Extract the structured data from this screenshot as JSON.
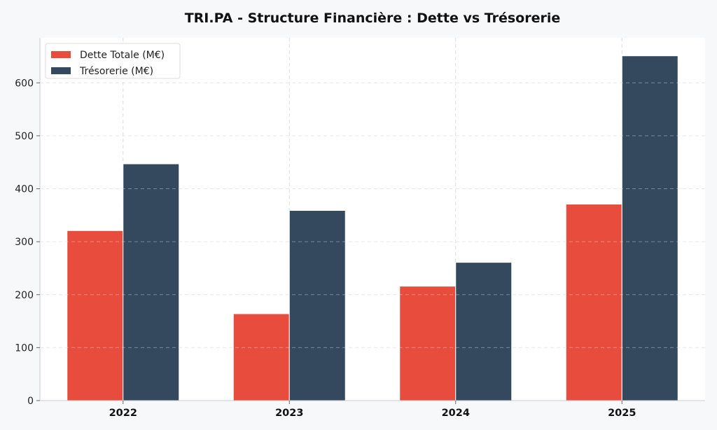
{
  "chart_data": {
    "type": "bar",
    "title": "TRI.PA - Structure Financière : Dette vs Trésorerie",
    "xlabel": "",
    "ylabel": "",
    "categories": [
      "2022",
      "2023",
      "2024",
      "2025"
    ],
    "series": [
      {
        "name": "Dette Totale (M€)",
        "color": "#e74c3c",
        "values": [
          321,
          164,
          216,
          371
        ]
      },
      {
        "name": "Trésorerie (M€)",
        "color": "#34495e",
        "values": [
          447,
          359,
          261,
          651
        ]
      }
    ],
    "ylim": [
      0,
      685
    ],
    "yticks": [
      0,
      100,
      200,
      300,
      400,
      500,
      600
    ],
    "grid": true,
    "legend_position": "top-left"
  }
}
